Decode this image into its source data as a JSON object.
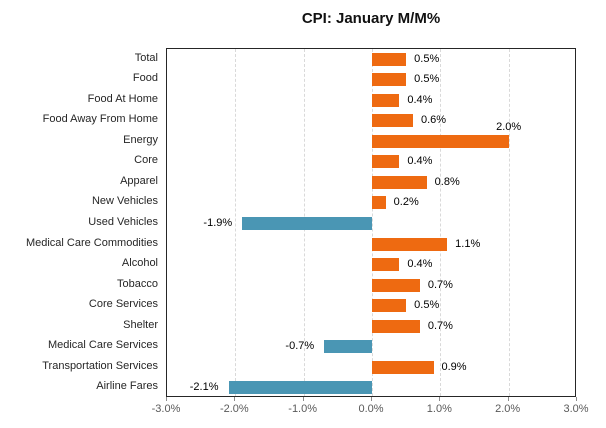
{
  "title": "CPI: January M/M%",
  "chart_data": {
    "type": "bar",
    "orientation": "horizontal",
    "title": "CPI: January M/M%",
    "categories": [
      "Total",
      "Food",
      "Food At Home",
      "Food Away From Home",
      "Energy",
      "Core",
      "Apparel",
      "New Vehicles",
      "Used Vehicles",
      "Medical Care Commodities",
      "Alcohol",
      "Tobacco",
      "Core Services",
      "Shelter",
      "Medical Care Services",
      "Transportation Services",
      "Airline Fares"
    ],
    "values": [
      0.5,
      0.5,
      0.4,
      0.6,
      2.0,
      0.4,
      0.8,
      0.2,
      -1.9,
      1.1,
      0.4,
      0.7,
      0.5,
      0.7,
      -0.7,
      0.9,
      -2.1
    ],
    "value_labels": [
      "0.5%",
      "0.5%",
      "0.4%",
      "0.6%",
      "2.0%",
      "0.4%",
      "0.8%",
      "0.2%",
      "-1.9%",
      "1.1%",
      "0.4%",
      "0.7%",
      "0.5%",
      "0.7%",
      "-0.7%",
      "0.9%",
      "-2.1%"
    ],
    "x_ticks": [
      "-3.0%",
      "-2.0%",
      "-1.0%",
      "0.0%",
      "1.0%",
      "2.0%",
      "3.0%"
    ],
    "xlim": [
      -3.0,
      3.0
    ],
    "grid": true,
    "legend": false,
    "label_above_indices": [
      4
    ],
    "positive_color": "#EE6A11",
    "negative_color": "#4A96B4",
    "gridline_color": "#D9D9D9",
    "axis_label_color": "#595959",
    "category_label_color": "#262626"
  }
}
